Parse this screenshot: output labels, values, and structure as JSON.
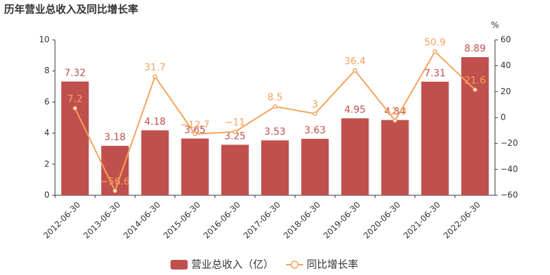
{
  "chart_data": {
    "type": "bar_line",
    "title": "历年营业总收入及同比增长率",
    "categories": [
      "2012-06-30",
      "2013-06-30",
      "2014-06-30",
      "2015-06-30",
      "2016-06-30",
      "2017-06-30",
      "2018-06-30",
      "2019-06-30",
      "2020-06-30",
      "2021-06-30",
      "2022-06-30"
    ],
    "series": [
      {
        "name": "营业总收入（亿）",
        "type": "bar",
        "color": "#c0504d",
        "axis": "y",
        "values": [
          7.32,
          3.18,
          4.18,
          3.65,
          3.25,
          3.53,
          3.63,
          4.95,
          4.84,
          7.31,
          8.89
        ]
      },
      {
        "name": "同比增长率",
        "type": "line",
        "color": "#f5a35c",
        "axis": "y2",
        "values": [
          7.2,
          -56.6,
          31.7,
          -12.7,
          -11,
          8.5,
          3,
          36.4,
          -2.3,
          50.9,
          21.6
        ],
        "value_labels": [
          "7.2",
          "−56.6",
          "31.7",
          "−12.7",
          "−11",
          "8.5",
          "3",
          "36.4",
          "−2.3",
          "50.9",
          "21.6"
        ]
      }
    ],
    "ylim": [
      0,
      10
    ],
    "yticks": [
      0,
      2,
      4,
      6,
      8,
      10
    ],
    "y2label": "%",
    "y2lim": [
      -60,
      60
    ],
    "y2ticks": [
      {
        "value": -60,
        "label": "−60"
      },
      {
        "value": -40,
        "label": "−40"
      },
      {
        "value": -20,
        "label": "−20"
      },
      0,
      20,
      40,
      60
    ]
  }
}
